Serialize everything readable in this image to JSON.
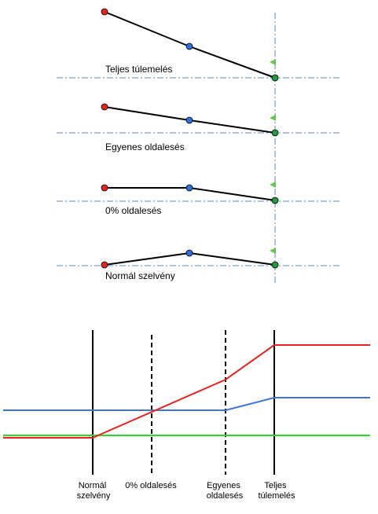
{
  "cross_sections": [
    {
      "label": "Teljes túlemelés"
    },
    {
      "label": "Egyenes oldalesés"
    },
    {
      "label": "0% oldalesés"
    },
    {
      "label": "Normál szelvény"
    }
  ],
  "transition_labels": [
    {
      "lines": [
        "Normál",
        "szelvény"
      ]
    },
    {
      "lines": [
        "0% oldalesés"
      ]
    },
    {
      "lines": [
        "Egyenes",
        "oldalesés"
      ]
    },
    {
      "lines": [
        "Teljes",
        "túlemelés"
      ]
    }
  ],
  "colors": {
    "outer_point": "#e8231f",
    "center_point": "#2f6fe0",
    "axis_point": "#1e9e3a",
    "flag": "#63c84a",
    "reference_line": "#5b86c8",
    "red_profile": "#e8231f",
    "blue_profile": "#3f74d8",
    "green_profile": "#22dd22"
  }
}
